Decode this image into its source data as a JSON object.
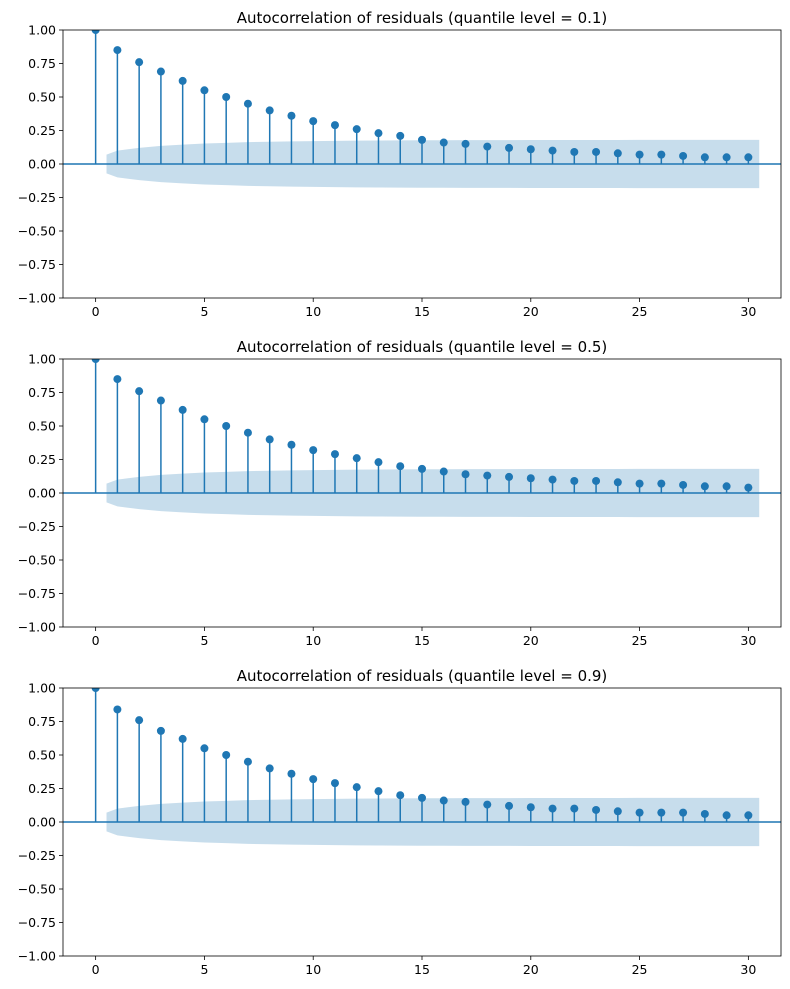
{
  "colors": {
    "stem": "#1f77b4",
    "band": "#1f77b4",
    "frame": "#000000",
    "background": "#ffffff"
  },
  "chart_data": [
    {
      "type": "stem",
      "title": "Autocorrelation of residuals (quantile level = 0.1)",
      "xlabel": "",
      "ylabel": "",
      "xlim": [
        -1.5,
        31.5
      ],
      "ylim": [
        -1.0,
        1.0
      ],
      "xticks": [
        0,
        5,
        10,
        15,
        20,
        25,
        30
      ],
      "xtick_labels": [
        "0",
        "5",
        "10",
        "15",
        "20",
        "25",
        "30"
      ],
      "yticks": [
        -1.0,
        -0.75,
        -0.5,
        -0.25,
        0.0,
        0.25,
        0.5,
        0.75,
        1.0
      ],
      "ytick_labels": [
        "−1.00",
        "−0.75",
        "−0.50",
        "−0.25",
        "0.00",
        "0.25",
        "0.50",
        "0.75",
        "1.00"
      ],
      "grid": false,
      "lags": [
        0,
        1,
        2,
        3,
        4,
        5,
        6,
        7,
        8,
        9,
        10,
        11,
        12,
        13,
        14,
        15,
        16,
        17,
        18,
        19,
        20,
        21,
        22,
        23,
        24,
        25,
        26,
        27,
        28,
        29,
        30
      ],
      "values": [
        1.0,
        0.85,
        0.76,
        0.69,
        0.62,
        0.55,
        0.5,
        0.45,
        0.4,
        0.36,
        0.32,
        0.29,
        0.26,
        0.23,
        0.21,
        0.18,
        0.16,
        0.15,
        0.13,
        0.12,
        0.11,
        0.1,
        0.09,
        0.09,
        0.08,
        0.07,
        0.07,
        0.06,
        0.05,
        0.05,
        0.05
      ],
      "confidence_upper": [
        0.07,
        0.1,
        0.12,
        0.135,
        0.145,
        0.153,
        0.158,
        0.163,
        0.166,
        0.169,
        0.171,
        0.173,
        0.174,
        0.175,
        0.176,
        0.177,
        0.177,
        0.178,
        0.178,
        0.178,
        0.179,
        0.179,
        0.179,
        0.179,
        0.179,
        0.18,
        0.18,
        0.18,
        0.18,
        0.18,
        0.18
      ]
    },
    {
      "type": "stem",
      "title": "Autocorrelation of residuals (quantile level = 0.5)",
      "xlabel": "",
      "ylabel": "",
      "xlim": [
        -1.5,
        31.5
      ],
      "ylim": [
        -1.0,
        1.0
      ],
      "xticks": [
        0,
        5,
        10,
        15,
        20,
        25,
        30
      ],
      "xtick_labels": [
        "0",
        "5",
        "10",
        "15",
        "20",
        "25",
        "30"
      ],
      "yticks": [
        -1.0,
        -0.75,
        -0.5,
        -0.25,
        0.0,
        0.25,
        0.5,
        0.75,
        1.0
      ],
      "ytick_labels": [
        "−1.00",
        "−0.75",
        "−0.50",
        "−0.25",
        "0.00",
        "0.25",
        "0.50",
        "0.75",
        "1.00"
      ],
      "grid": false,
      "lags": [
        0,
        1,
        2,
        3,
        4,
        5,
        6,
        7,
        8,
        9,
        10,
        11,
        12,
        13,
        14,
        15,
        16,
        17,
        18,
        19,
        20,
        21,
        22,
        23,
        24,
        25,
        26,
        27,
        28,
        29,
        30
      ],
      "values": [
        1.0,
        0.85,
        0.76,
        0.69,
        0.62,
        0.55,
        0.5,
        0.45,
        0.4,
        0.36,
        0.32,
        0.29,
        0.26,
        0.23,
        0.2,
        0.18,
        0.16,
        0.14,
        0.13,
        0.12,
        0.11,
        0.1,
        0.09,
        0.09,
        0.08,
        0.07,
        0.07,
        0.06,
        0.05,
        0.05,
        0.04
      ],
      "confidence_upper": [
        0.07,
        0.1,
        0.12,
        0.135,
        0.145,
        0.153,
        0.158,
        0.163,
        0.166,
        0.169,
        0.171,
        0.173,
        0.174,
        0.175,
        0.176,
        0.177,
        0.177,
        0.178,
        0.178,
        0.178,
        0.179,
        0.179,
        0.179,
        0.179,
        0.179,
        0.18,
        0.18,
        0.18,
        0.18,
        0.18,
        0.18
      ]
    },
    {
      "type": "stem",
      "title": "Autocorrelation of residuals (quantile level = 0.9)",
      "xlabel": "",
      "ylabel": "",
      "xlim": [
        -1.5,
        31.5
      ],
      "ylim": [
        -1.0,
        1.0
      ],
      "xticks": [
        0,
        5,
        10,
        15,
        20,
        25,
        30
      ],
      "xtick_labels": [
        "0",
        "5",
        "10",
        "15",
        "20",
        "25",
        "30"
      ],
      "yticks": [
        -1.0,
        -0.75,
        -0.5,
        -0.25,
        0.0,
        0.25,
        0.5,
        0.75,
        1.0
      ],
      "ytick_labels": [
        "−1.00",
        "−0.75",
        "−0.50",
        "−0.25",
        "0.00",
        "0.25",
        "0.50",
        "0.75",
        "1.00"
      ],
      "grid": false,
      "lags": [
        0,
        1,
        2,
        3,
        4,
        5,
        6,
        7,
        8,
        9,
        10,
        11,
        12,
        13,
        14,
        15,
        16,
        17,
        18,
        19,
        20,
        21,
        22,
        23,
        24,
        25,
        26,
        27,
        28,
        29,
        30
      ],
      "values": [
        1.0,
        0.84,
        0.76,
        0.68,
        0.62,
        0.55,
        0.5,
        0.45,
        0.4,
        0.36,
        0.32,
        0.29,
        0.26,
        0.23,
        0.2,
        0.18,
        0.16,
        0.15,
        0.13,
        0.12,
        0.11,
        0.1,
        0.1,
        0.09,
        0.08,
        0.07,
        0.07,
        0.07,
        0.06,
        0.05,
        0.05
      ],
      "confidence_upper": [
        0.07,
        0.1,
        0.12,
        0.135,
        0.145,
        0.153,
        0.158,
        0.163,
        0.166,
        0.169,
        0.171,
        0.173,
        0.174,
        0.175,
        0.176,
        0.177,
        0.177,
        0.178,
        0.178,
        0.178,
        0.179,
        0.179,
        0.179,
        0.179,
        0.179,
        0.18,
        0.18,
        0.18,
        0.18,
        0.18,
        0.18
      ]
    }
  ]
}
